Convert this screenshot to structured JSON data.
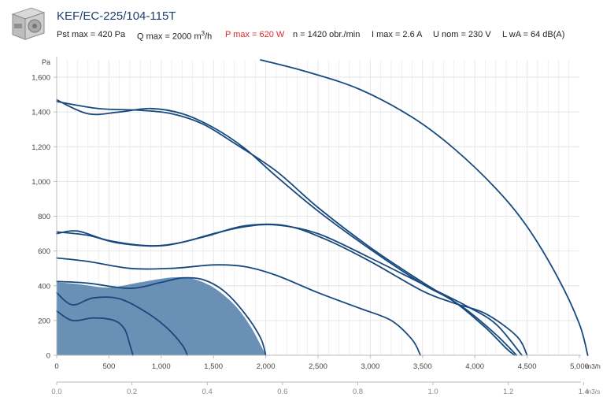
{
  "product": {
    "title": "KEF/EC-225/104-115T",
    "specs": {
      "pst": "Pst max = 420 Pa",
      "q": "Q max = 2000 m",
      "q_sup": "3",
      "q_unit": "/h",
      "p": "P max = 620 W",
      "n": "n = 1420 obr./min",
      "i": "I max = 2.6 A",
      "u": "U nom = 230 V",
      "l": "L wA = 64 dB(A)"
    }
  },
  "colors": {
    "curve": "#17497f",
    "fill": "#5a84ad",
    "grid": "#e6e6e6",
    "accent_red": "#e0282c",
    "title": "#1d3e73"
  },
  "chart_data": {
    "type": "line",
    "ylabel": "Pa",
    "xlabel": "m3/h",
    "x2label": "m3/s",
    "xlim": [
      0,
      5000
    ],
    "ylim": [
      0,
      1700
    ],
    "x_ticks": [
      0,
      500,
      1000,
      1500,
      2000,
      2500,
      3000,
      3500,
      4000,
      4500,
      5000
    ],
    "x_tick_labels": [
      "0",
      "500",
      "1,000",
      "1,500",
      "2,000",
      "2,500",
      "3,000",
      "3,500",
      "4,000",
      "4,500",
      "5,000"
    ],
    "y_ticks": [
      0,
      200,
      400,
      600,
      800,
      1000,
      1200,
      1400,
      1600
    ],
    "y_tick_labels": [
      "0",
      "200",
      "400",
      "600",
      "800",
      "1,000",
      "1,200",
      "1,400",
      "1,600"
    ],
    "x2_ticks": [
      0.0,
      0.2,
      0.4,
      0.6,
      0.8,
      1.0,
      1.2,
      1.4
    ],
    "x2_tick_labels": [
      "0.0",
      "0.2",
      "0.4",
      "0.6",
      "0.8",
      "1.0",
      "1.2",
      "1.4"
    ],
    "grid": true,
    "shaded_area": [
      [
        0,
        420
      ],
      [
        200,
        410
      ],
      [
        500,
        390
      ],
      [
        800,
        420
      ],
      [
        1100,
        448
      ],
      [
        1300,
        440
      ],
      [
        1500,
        390
      ],
      [
        1700,
        290
      ],
      [
        1850,
        170
      ],
      [
        1950,
        60
      ],
      [
        2000,
        0
      ]
    ],
    "series": [
      {
        "points": [
          [
            0,
            1470
          ],
          [
            300,
            1390
          ],
          [
            600,
            1400
          ],
          [
            900,
            1420
          ],
          [
            1200,
            1390
          ],
          [
            1500,
            1310
          ],
          [
            1800,
            1190
          ],
          [
            2100,
            1030
          ],
          [
            2500,
            830
          ],
          [
            3000,
            610
          ],
          [
            3500,
            410
          ],
          [
            3800,
            310
          ],
          [
            4100,
            160
          ],
          [
            4300,
            40
          ],
          [
            4380,
            0
          ]
        ]
      },
      {
        "points": [
          [
            0,
            1460
          ],
          [
            400,
            1420
          ],
          [
            800,
            1410
          ],
          [
            1100,
            1390
          ],
          [
            1400,
            1330
          ],
          [
            1700,
            1220
          ],
          [
            2100,
            1060
          ],
          [
            2500,
            850
          ],
          [
            3000,
            620
          ],
          [
            3500,
            420
          ],
          [
            3900,
            270
          ],
          [
            4200,
            120
          ],
          [
            4400,
            0
          ]
        ]
      },
      {
        "points": [
          [
            1950,
            1700
          ],
          [
            2400,
            1630
          ],
          [
            2900,
            1530
          ],
          [
            3400,
            1370
          ],
          [
            3800,
            1190
          ],
          [
            4200,
            960
          ],
          [
            4500,
            740
          ],
          [
            4800,
            440
          ],
          [
            5000,
            180
          ],
          [
            5080,
            0
          ]
        ]
      },
      {
        "points": [
          [
            0,
            700
          ],
          [
            200,
            715
          ],
          [
            500,
            660
          ],
          [
            900,
            630
          ],
          [
            1200,
            650
          ],
          [
            1500,
            700
          ],
          [
            1800,
            740
          ],
          [
            2100,
            750
          ],
          [
            2500,
            700
          ],
          [
            3000,
            560
          ],
          [
            3500,
            410
          ],
          [
            3900,
            290
          ],
          [
            4200,
            180
          ],
          [
            4450,
            0
          ]
        ]
      },
      {
        "points": [
          [
            0,
            710
          ],
          [
            300,
            690
          ],
          [
            600,
            645
          ],
          [
            1000,
            630
          ],
          [
            1400,
            680
          ],
          [
            1800,
            745
          ],
          [
            2200,
            745
          ],
          [
            2600,
            660
          ],
          [
            3000,
            540
          ],
          [
            3500,
            370
          ],
          [
            3800,
            300
          ],
          [
            4100,
            240
          ],
          [
            4400,
            110
          ],
          [
            4500,
            0
          ]
        ]
      },
      {
        "points": [
          [
            0,
            560
          ],
          [
            300,
            540
          ],
          [
            700,
            500
          ],
          [
            1100,
            500
          ],
          [
            1500,
            520
          ],
          [
            1800,
            510
          ],
          [
            2100,
            460
          ],
          [
            2500,
            360
          ],
          [
            2900,
            270
          ],
          [
            3200,
            200
          ],
          [
            3400,
            90
          ],
          [
            3480,
            0
          ]
        ]
      },
      {
        "points": [
          [
            0,
            425
          ],
          [
            300,
            415
          ],
          [
            700,
            385
          ],
          [
            1000,
            420
          ],
          [
            1200,
            445
          ],
          [
            1400,
            435
          ],
          [
            1600,
            370
          ],
          [
            1800,
            240
          ],
          [
            1950,
            100
          ],
          [
            2000,
            0
          ]
        ]
      },
      {
        "points": [
          [
            0,
            360
          ],
          [
            150,
            290
          ],
          [
            350,
            330
          ],
          [
            600,
            325
          ],
          [
            850,
            250
          ],
          [
            1050,
            160
          ],
          [
            1200,
            60
          ],
          [
            1250,
            0
          ]
        ]
      },
      {
        "points": [
          [
            0,
            255
          ],
          [
            150,
            200
          ],
          [
            350,
            215
          ],
          [
            550,
            200
          ],
          [
            650,
            150
          ],
          [
            700,
            60
          ],
          [
            730,
            0
          ]
        ]
      }
    ]
  }
}
